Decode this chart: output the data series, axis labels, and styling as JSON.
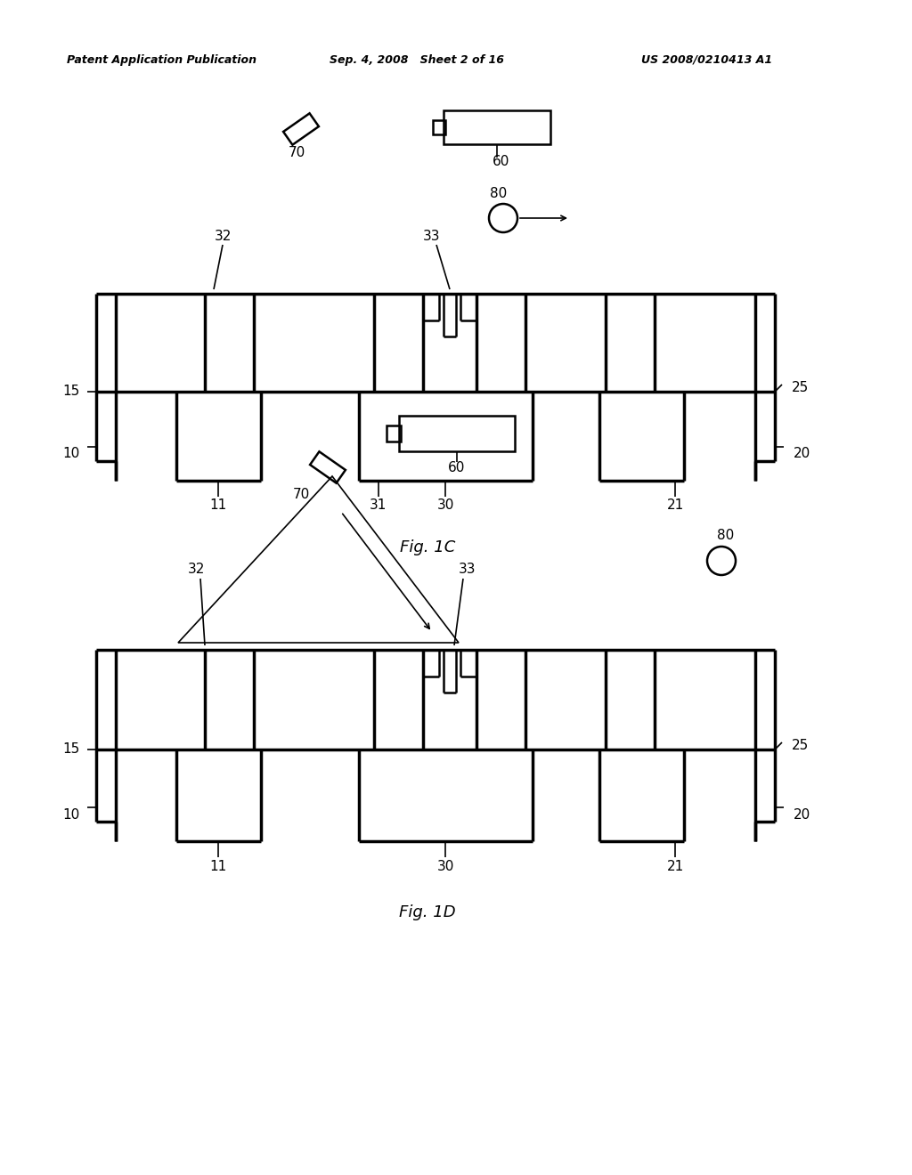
{
  "bg_color": "#ffffff",
  "header_left": "Patent Application Publication",
  "header_mid": "Sep. 4, 2008   Sheet 2 of 16",
  "header_right": "US 2008/0210413 A1",
  "fig1c_caption": "Fig. 1C",
  "fig1d_caption": "Fig. 1D",
  "lw_thin": 1.2,
  "lw_med": 1.8,
  "lw_thick": 2.5,
  "label_fs": 11,
  "header_fs": 9,
  "caption_fs": 13
}
